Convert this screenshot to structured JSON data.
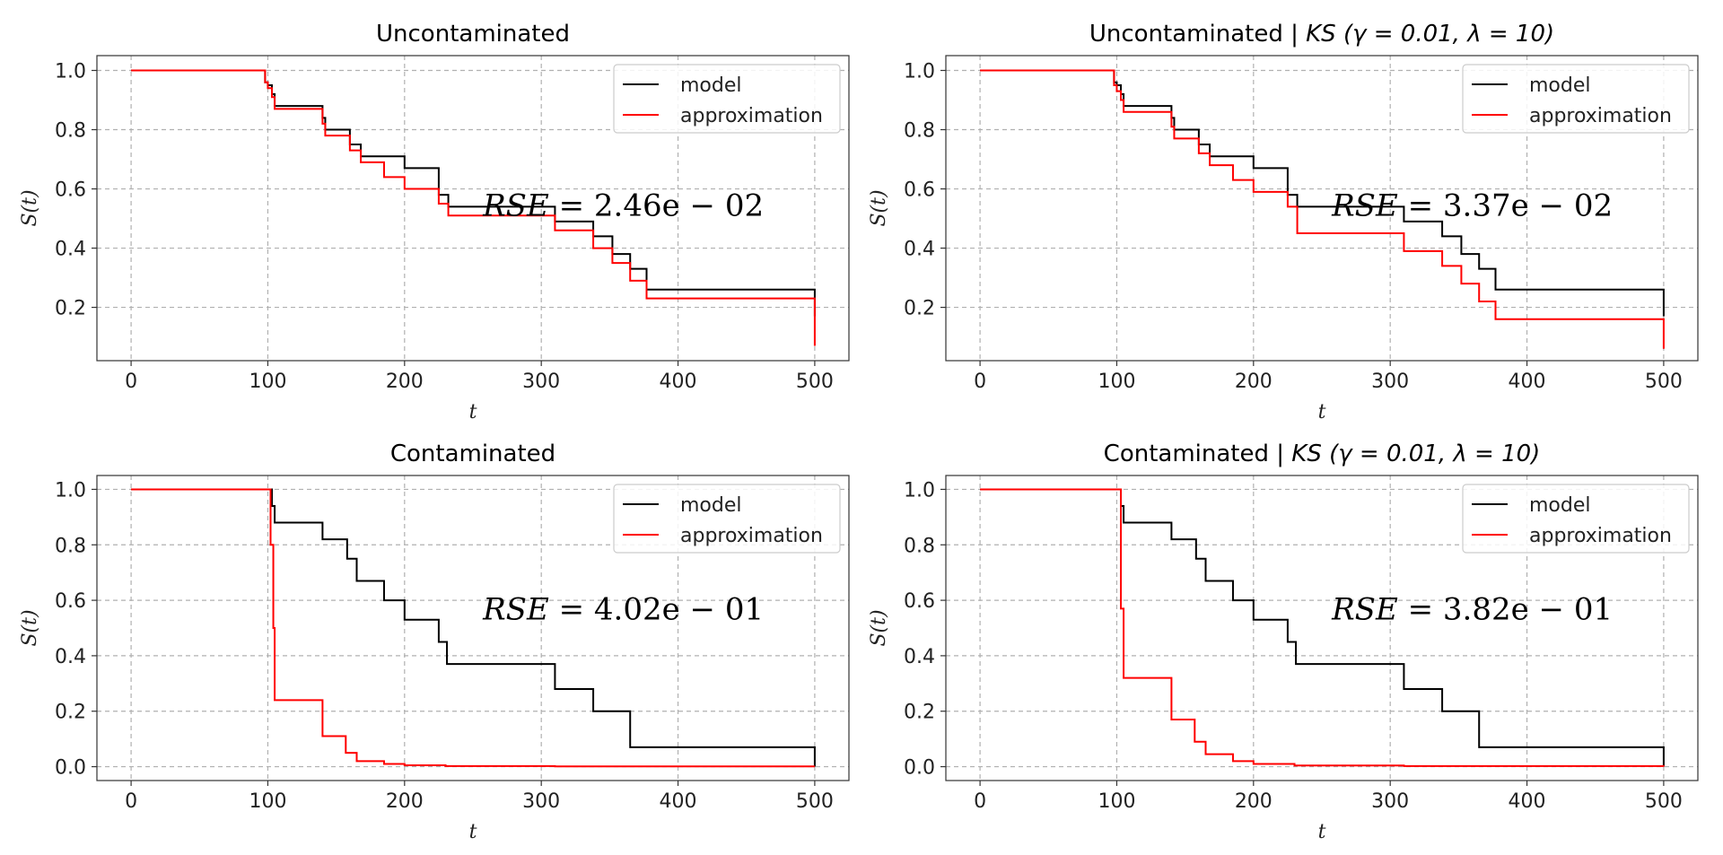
{
  "chart_data": [
    {
      "type": "line",
      "step": true,
      "title": "Uncontaminated",
      "title_method": "",
      "xlabel": "t",
      "ylabel": "S(t)",
      "xlim": [
        -25,
        525
      ],
      "ylim": [
        0.02,
        1.05
      ],
      "xticks": [
        0,
        100,
        200,
        300,
        400,
        500
      ],
      "yticks": [
        0.2,
        0.4,
        0.6,
        0.8,
        1.0
      ],
      "grid": true,
      "legend": "top-right",
      "annotation": {
        "prefix": "RSE",
        "text": " = 2.46e − 02",
        "x": 360,
        "y": 0.51
      },
      "series": [
        {
          "name": "model",
          "color": "#000000",
          "x": [
            0,
            98,
            100,
            103,
            105,
            140,
            142,
            160,
            168,
            200,
            225,
            232,
            310,
            338,
            352,
            365,
            377,
            500,
            500
          ],
          "y": [
            1.0,
            0.96,
            0.95,
            0.92,
            0.88,
            0.84,
            0.8,
            0.75,
            0.71,
            0.67,
            0.58,
            0.54,
            0.49,
            0.44,
            0.38,
            0.33,
            0.26,
            0.19,
            0.17
          ]
        },
        {
          "name": "approximation",
          "color": "#ff0000",
          "x": [
            0,
            98,
            100,
            103,
            105,
            140,
            142,
            160,
            168,
            185,
            200,
            225,
            232,
            310,
            338,
            352,
            365,
            377,
            500,
            500
          ],
          "y": [
            1.0,
            0.96,
            0.94,
            0.91,
            0.87,
            0.82,
            0.78,
            0.73,
            0.69,
            0.64,
            0.6,
            0.55,
            0.51,
            0.46,
            0.4,
            0.35,
            0.29,
            0.23,
            0.17,
            0.07
          ]
        }
      ]
    },
    {
      "type": "line",
      "step": true,
      "title": "Uncontaminated",
      "title_method": "KS (γ = 0.01, λ = 10)",
      "xlabel": "t",
      "ylabel": "S(t)",
      "xlim": [
        -25,
        525
      ],
      "ylim": [
        0.02,
        1.05
      ],
      "xticks": [
        0,
        100,
        200,
        300,
        400,
        500
      ],
      "yticks": [
        0.2,
        0.4,
        0.6,
        0.8,
        1.0
      ],
      "grid": true,
      "legend": "top-right",
      "annotation": {
        "prefix": "RSE",
        "text": " = 3.37e − 02",
        "x": 360,
        "y": 0.51
      },
      "series": [
        {
          "name": "model",
          "color": "#000000",
          "x": [
            0,
            98,
            100,
            103,
            105,
            140,
            142,
            160,
            168,
            200,
            225,
            232,
            310,
            338,
            352,
            365,
            377,
            500,
            500
          ],
          "y": [
            1.0,
            0.96,
            0.95,
            0.92,
            0.88,
            0.84,
            0.8,
            0.75,
            0.71,
            0.67,
            0.58,
            0.54,
            0.49,
            0.44,
            0.38,
            0.33,
            0.26,
            0.19,
            0.17
          ]
        },
        {
          "name": "approximation",
          "color": "#ff0000",
          "x": [
            0,
            98,
            100,
            103,
            105,
            140,
            142,
            160,
            168,
            185,
            200,
            225,
            232,
            310,
            338,
            352,
            365,
            377,
            500,
            500
          ],
          "y": [
            1.0,
            0.95,
            0.93,
            0.9,
            0.86,
            0.81,
            0.77,
            0.72,
            0.68,
            0.63,
            0.59,
            0.54,
            0.45,
            0.39,
            0.34,
            0.28,
            0.22,
            0.16,
            0.16,
            0.06
          ]
        }
      ]
    },
    {
      "type": "line",
      "step": true,
      "title": "Contaminated",
      "title_method": "",
      "xlabel": "t",
      "ylabel": "S(t)",
      "xlim": [
        -25,
        525
      ],
      "ylim": [
        -0.05,
        1.05
      ],
      "xticks": [
        0,
        100,
        200,
        300,
        400,
        500
      ],
      "yticks": [
        0.0,
        0.2,
        0.4,
        0.6,
        0.8,
        1.0
      ],
      "grid": true,
      "legend": "top-right",
      "annotation": {
        "prefix": "RSE",
        "text": " = 4.02e − 01",
        "x": 360,
        "y": 0.53
      },
      "series": [
        {
          "name": "model",
          "color": "#000000",
          "x": [
            0,
            103,
            105,
            140,
            158,
            165,
            185,
            200,
            225,
            231,
            310,
            338,
            365,
            500,
            500
          ],
          "y": [
            1.0,
            0.94,
            0.88,
            0.82,
            0.75,
            0.67,
            0.6,
            0.53,
            0.45,
            0.37,
            0.28,
            0.2,
            0.07,
            0.07,
            0.0
          ]
        },
        {
          "name": "approximation",
          "color": "#ff0000",
          "x": [
            0,
            102,
            104,
            105,
            140,
            157,
            165,
            185,
            200,
            230,
            310,
            500
          ],
          "y": [
            1.0,
            0.8,
            0.5,
            0.24,
            0.11,
            0.05,
            0.02,
            0.01,
            0.005,
            0.002,
            0.001,
            0.001
          ]
        }
      ]
    },
    {
      "type": "line",
      "step": true,
      "title": "Contaminated",
      "title_method": "KS (γ = 0.01, λ = 10)",
      "xlabel": "t",
      "ylabel": "S(t)",
      "xlim": [
        -25,
        525
      ],
      "ylim": [
        -0.05,
        1.05
      ],
      "xticks": [
        0,
        100,
        200,
        300,
        400,
        500
      ],
      "yticks": [
        0.0,
        0.2,
        0.4,
        0.6,
        0.8,
        1.0
      ],
      "grid": true,
      "legend": "top-right",
      "annotation": {
        "prefix": "RSE",
        "text": " = 3.82e − 01",
        "x": 360,
        "y": 0.53
      },
      "series": [
        {
          "name": "model",
          "color": "#000000",
          "x": [
            0,
            103,
            105,
            140,
            158,
            165,
            185,
            200,
            225,
            231,
            310,
            338,
            365,
            500,
            500
          ],
          "y": [
            1.0,
            0.94,
            0.88,
            0.82,
            0.75,
            0.67,
            0.6,
            0.53,
            0.45,
            0.37,
            0.28,
            0.2,
            0.07,
            0.07,
            0.0
          ]
        },
        {
          "name": "approximation",
          "color": "#ff0000",
          "x": [
            0,
            103,
            105,
            140,
            157,
            165,
            185,
            200,
            230,
            310,
            500
          ],
          "y": [
            1.0,
            0.57,
            0.32,
            0.17,
            0.09,
            0.045,
            0.02,
            0.01,
            0.004,
            0.002,
            0.001
          ]
        }
      ]
    }
  ]
}
